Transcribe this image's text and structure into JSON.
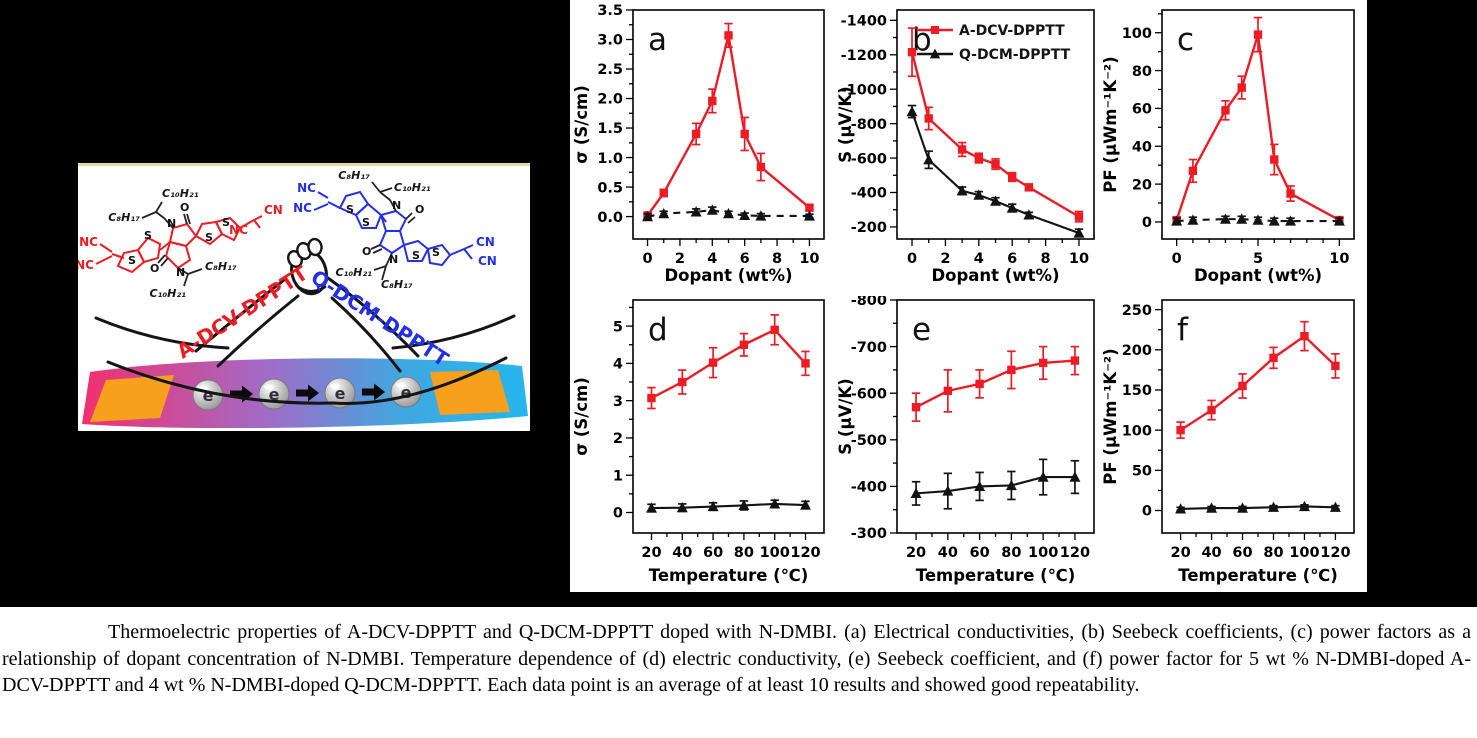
{
  "colors": {
    "red": "#ed1c24",
    "black": "#131313",
    "blue": "#2330e8",
    "electrode": "#f6a01e",
    "ribbon_pink": "#f2467f",
    "ribbon_violet": "#a06cc8",
    "ribbon_blue": "#25b6ee",
    "tan_border": "#e9d8a4"
  },
  "toc": {
    "molecule_left_name": "A-DCV-DPPTT",
    "molecule_right_name": "Q-DCM-DPPTT",
    "alkyl_c10": "C₁₀H₂₁",
    "alkyl_c8": "C₈H₁₇",
    "nc": "NC",
    "cn": "CN",
    "atom_s": "S",
    "atom_n": "N",
    "atom_o": "O",
    "electron": "e"
  },
  "chart_data": [
    {
      "type": "line",
      "panel_label": "a",
      "xlabel": "Dopant (wt%)",
      "ylabel": "σ (S/cm)",
      "xlim": [
        -0.9,
        10.9
      ],
      "ylim": [
        -0.38,
        3.5
      ],
      "xticks": [
        0,
        2,
        4,
        6,
        8,
        10
      ],
      "xtick_labels": [
        "0",
        "2",
        "4",
        "6",
        "8",
        "10"
      ],
      "xminor": [
        1,
        3,
        5,
        7,
        9
      ],
      "yticks": [
        0,
        0.5,
        1,
        1.5,
        2,
        2.5,
        3,
        3.5
      ],
      "ytick_labels": [
        "0.0",
        "0.5",
        "1.0",
        "1.5",
        "2.0",
        "2.5",
        "3.0",
        "3.5"
      ],
      "yminor": [
        0.25,
        0.75,
        1.25,
        1.75,
        2.25,
        2.75,
        3.25
      ],
      "x": [
        0,
        1,
        3,
        4,
        5,
        6,
        7,
        10
      ],
      "legend": false,
      "series": [
        {
          "name": "A-DCV-DPPTT",
          "color": "red",
          "marker": "square",
          "dash": null,
          "y": [
            0.02,
            0.4,
            1.4,
            1.96,
            3.07,
            1.4,
            0.84,
            0.15
          ],
          "err": [
            0.03,
            0.06,
            0.18,
            0.2,
            0.2,
            0.28,
            0.23,
            0.05
          ]
        },
        {
          "name": "Q-DCM-DPPTT",
          "color": "black",
          "marker": "triangle",
          "dash": "7,6",
          "y": [
            0.0,
            0.05,
            0.08,
            0.11,
            0.05,
            0.02,
            0.01,
            0.01
          ],
          "err": [
            0.05,
            0.04,
            0.05,
            0.05,
            0.04,
            0.04,
            0.04,
            0.03
          ]
        }
      ]
    },
    {
      "type": "line",
      "panel_label": "b",
      "xlabel": "Dopant (wt%)",
      "ylabel": "S (μV/K)",
      "xlim": [
        -0.9,
        10.9
      ],
      "ylim": [
        -130,
        -1460
      ],
      "xticks": [
        0,
        2,
        4,
        6,
        8,
        10
      ],
      "xtick_labels": [
        "0",
        "2",
        "4",
        "6",
        "8",
        "10"
      ],
      "xminor": [
        1,
        3,
        5,
        7,
        9
      ],
      "yticks": [
        -1400,
        -1200,
        -1000,
        -800,
        -600,
        -400,
        -200
      ],
      "ytick_labels": [
        "-1400",
        "-1200",
        "-1000",
        "-800",
        "-600",
        "-400",
        "-200"
      ],
      "yminor": [
        -1300,
        -1100,
        -900,
        -700,
        -500,
        -300
      ],
      "x": [
        0,
        1,
        3,
        4,
        5,
        6,
        7,
        10
      ],
      "legend": true,
      "series": [
        {
          "name": "A-DCV-DPPTT",
          "color": "red",
          "marker": "square",
          "dash": null,
          "y": [
            -1215,
            -830,
            -650,
            -600,
            -565,
            -490,
            -430,
            -260
          ],
          "err": [
            140,
            65,
            40,
            28,
            30,
            25,
            18,
            30
          ]
        },
        {
          "name": "Q-DCM-DPPTT",
          "color": "black",
          "marker": "triangle",
          "dash": null,
          "y": [
            -870,
            -590,
            -410,
            -385,
            -350,
            -310,
            -270,
            -165
          ],
          "err": [
            35,
            50,
            22,
            20,
            20,
            22,
            15,
            22
          ]
        }
      ]
    },
    {
      "type": "line",
      "panel_label": "c",
      "xlabel": "Dopant (wt%)",
      "ylabel": "PF (μWm⁻¹K⁻²)",
      "xlim": [
        -0.9,
        10.9
      ],
      "ylim": [
        -9,
        112
      ],
      "xticks": [
        0,
        5,
        10
      ],
      "xtick_labels": [
        "0",
        "5",
        "10"
      ],
      "xminor": [
        1,
        2,
        3,
        4,
        6,
        7,
        8,
        9
      ],
      "yticks": [
        0,
        20,
        40,
        60,
        80,
        100
      ],
      "ytick_labels": [
        "0",
        "20",
        "40",
        "60",
        "80",
        "100"
      ],
      "yminor": [
        10,
        30,
        50,
        70,
        90,
        110
      ],
      "x": [
        0,
        1,
        3,
        4,
        5,
        6,
        7,
        10
      ],
      "legend": false,
      "series": [
        {
          "name": "A-DCV-DPPTT",
          "color": "red",
          "marker": "square",
          "dash": null,
          "y": [
            1,
            27,
            59,
            71,
            99,
            33,
            15,
            1
          ],
          "err": [
            1.5,
            6,
            5,
            6,
            9,
            8,
            4,
            1.5
          ]
        },
        {
          "name": "Q-DCM-DPPTT",
          "color": "black",
          "marker": "triangle",
          "dash": "7,6",
          "y": [
            0.5,
            1,
            1.5,
            1.5,
            1,
            0.5,
            0.5,
            0.5
          ],
          "err": [
            1.5,
            1.5,
            1.5,
            1.5,
            1.5,
            1.5,
            1.5,
            1.5
          ]
        }
      ]
    },
    {
      "type": "line",
      "panel_label": "d",
      "xlabel": "Temperature (℃)",
      "ylabel": "σ (S/cm)",
      "xlim": [
        8,
        132
      ],
      "ylim": [
        -0.55,
        5.7
      ],
      "xticks": [
        20,
        40,
        60,
        80,
        100,
        120
      ],
      "xtick_labels": [
        "20",
        "40",
        "60",
        "80",
        "100",
        "120"
      ],
      "xminor": [
        30,
        50,
        70,
        90,
        110
      ],
      "yticks": [
        0,
        1,
        2,
        3,
        4,
        5
      ],
      "ytick_labels": [
        "0",
        "1",
        "2",
        "3",
        "4",
        "5"
      ],
      "yminor": [
        0.5,
        1.5,
        2.5,
        3.5,
        4.5,
        5.5
      ],
      "x": [
        20,
        40,
        60,
        80,
        100,
        120
      ],
      "legend": false,
      "series": [
        {
          "name": "A-DCV-DPPTT",
          "color": "red",
          "marker": "square",
          "dash": null,
          "y": [
            3.07,
            3.5,
            4.02,
            4.5,
            4.9,
            4.0
          ],
          "err": [
            0.28,
            0.32,
            0.4,
            0.3,
            0.4,
            0.32
          ]
        },
        {
          "name": "Q-DCM-DPPTT",
          "color": "black",
          "marker": "triangle",
          "dash": null,
          "y": [
            0.12,
            0.13,
            0.16,
            0.19,
            0.23,
            0.2
          ],
          "err": [
            0.1,
            0.1,
            0.1,
            0.12,
            0.1,
            0.1
          ]
        }
      ]
    },
    {
      "type": "line",
      "panel_label": "e",
      "xlabel": "Temperature (℃)",
      "ylabel": "S (μV/K)",
      "xlim": [
        8,
        132
      ],
      "ylim": [
        -300,
        -800
      ],
      "xticks": [
        20,
        40,
        60,
        80,
        100,
        120
      ],
      "xtick_labels": [
        "20",
        "40",
        "60",
        "80",
        "100",
        "120"
      ],
      "xminor": [
        30,
        50,
        70,
        90,
        110
      ],
      "yticks": [
        -800,
        -700,
        -600,
        -500,
        -400,
        -300
      ],
      "ytick_labels": [
        "-800",
        "-700",
        "-600",
        "-500",
        "-400",
        "-300"
      ],
      "yminor": [
        -750,
        -650,
        -550,
        -450,
        -350
      ],
      "x": [
        20,
        40,
        60,
        80,
        100,
        120
      ],
      "legend": false,
      "series": [
        {
          "name": "A-DCV-DPPTT",
          "color": "red",
          "marker": "square",
          "dash": null,
          "y": [
            -570,
            -605,
            -620,
            -650,
            -665,
            -670
          ],
          "err": [
            30,
            45,
            30,
            40,
            35,
            30
          ]
        },
        {
          "name": "Q-DCM-DPPTT",
          "color": "black",
          "marker": "triangle",
          "dash": null,
          "y": [
            -385,
            -390,
            -400,
            -402,
            -420,
            -420
          ],
          "err": [
            25,
            38,
            30,
            30,
            38,
            35
          ]
        }
      ]
    },
    {
      "type": "line",
      "panel_label": "f",
      "xlabel": "Temperature (℃)",
      "ylabel": "PF (μWm⁻¹K⁻²)",
      "xlim": [
        8,
        132
      ],
      "ylim": [
        -28,
        262
      ],
      "xticks": [
        20,
        40,
        60,
        80,
        100,
        120
      ],
      "xtick_labels": [
        "20",
        "40",
        "60",
        "80",
        "100",
        "120"
      ],
      "xminor": [
        30,
        50,
        70,
        90,
        110
      ],
      "yticks": [
        0,
        50,
        100,
        150,
        200,
        250
      ],
      "ytick_labels": [
        "0",
        "50",
        "100",
        "150",
        "200",
        "250"
      ],
      "yminor": [
        25,
        75,
        125,
        175,
        225
      ],
      "x": [
        20,
        40,
        60,
        80,
        100,
        120
      ],
      "legend": false,
      "series": [
        {
          "name": "A-DCV-DPPTT",
          "color": "red",
          "marker": "square",
          "dash": null,
          "y": [
            100,
            125,
            155,
            190,
            217,
            180
          ],
          "err": [
            10,
            12,
            15,
            13,
            18,
            15
          ]
        },
        {
          "name": "Q-DCM-DPPTT",
          "color": "black",
          "marker": "triangle",
          "dash": null,
          "y": [
            2,
            3,
            3,
            4,
            5,
            4
          ],
          "err": [
            2,
            2,
            2,
            2,
            2,
            2
          ]
        }
      ]
    }
  ],
  "caption": {
    "text": "Thermoelectric properties of A-DCV-DPPTT and Q-DCM-DPPTT doped with N-DMBI. (a) Electrical conductivities, (b) Seebeck coefficients, (c) power factors as a relationship of dopant concentration of N-DMBI. Temperature dependence of (d) electric conductivity, (e) Seebeck coefficient, and (f) power factor for 5 wt % N-DMBI-doped A-DCV-DPPTT and 4 wt % N-DMBI-doped Q-DCM-DPPTT. Each data point is an average of at least 10 results and showed good repeatability."
  }
}
